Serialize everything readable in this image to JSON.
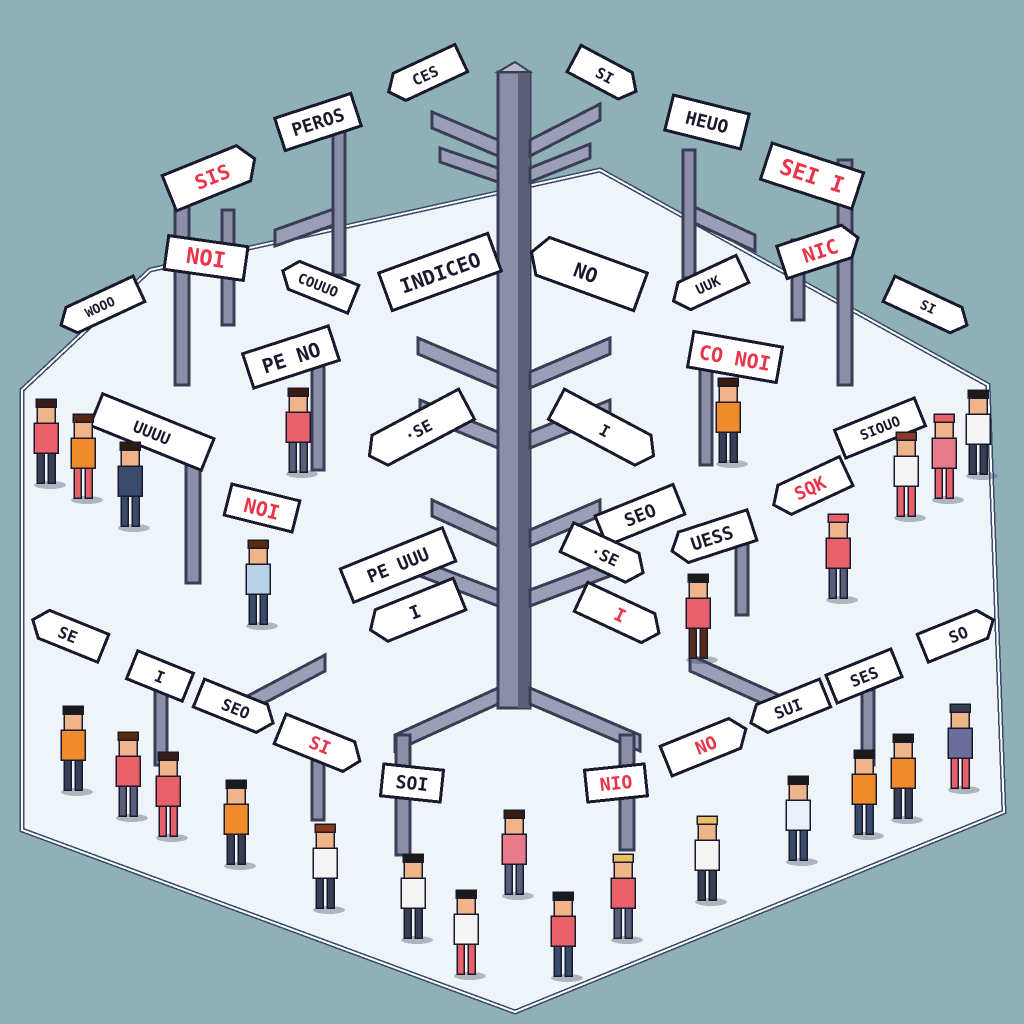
{
  "colors": {
    "background": "#8fb0b7",
    "platform": "#eef4f7",
    "platform_edge": "#3a4a6a",
    "pole": "#8a8ea8",
    "pole_dark": "#5b5f78",
    "sign_fill": "#ffffff",
    "sign_red": "#e8354a",
    "sign_dark": "#1a1a2e"
  },
  "signs": {
    "center": {
      "indiceo": "INDICEO",
      "no": "NO",
      "se": "·SE",
      "pe_uu": "PE UUU",
      "seo": "SEO",
      "uess": "UESS",
      "blank": "I"
    },
    "top": {
      "ces": "CES",
      "si": "SI",
      "peros": "PEROS",
      "heuo": "HEUO",
      "sei": "SEI I",
      "sis": "SIS",
      "no_left": "NOI",
      "nic": "NIC",
      "couuo": "COUUO",
      "uuk": "UUK",
      "wooo": "WOOO",
      "right_arrow": "SI"
    },
    "mid": {
      "pe_no": "PE NO",
      "co_noi": "CO NOI",
      "uuuu": "UUUU",
      "noi": "NOI",
      "sqk": "SQK",
      "right_long": "SIOUO"
    },
    "bottom": {
      "se": "SE",
      "i": "I",
      "seo": "SEO",
      "si": "SI",
      "soi": "SOI",
      "nio": "NIO",
      "no": "NO",
      "sui": "SUI",
      "ses": "SES",
      "so": "SO"
    }
  }
}
